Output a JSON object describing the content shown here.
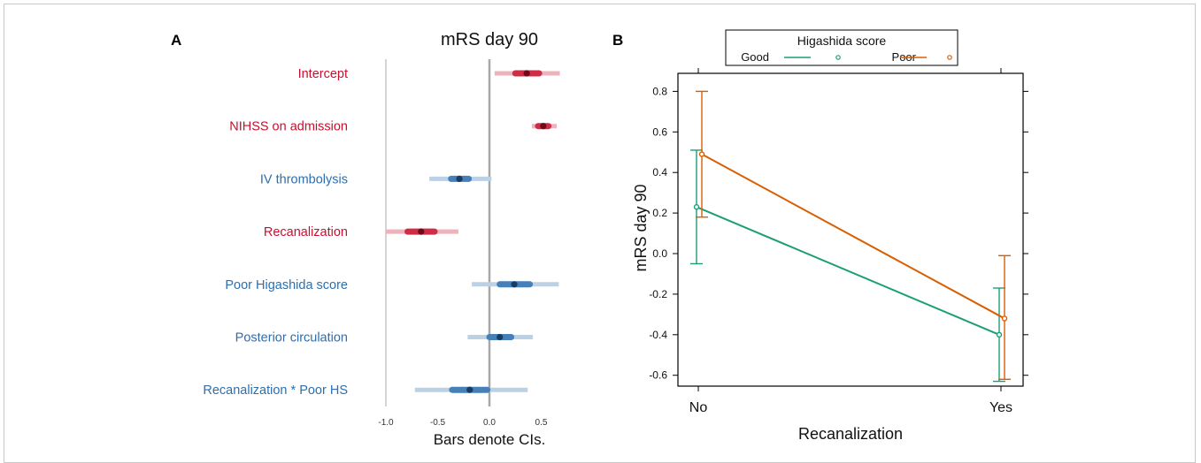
{
  "chart_data": [
    {
      "panel": "A",
      "type": "forest",
      "title": "mRS day 90",
      "xlabel": "Bars denote CIs.",
      "xlim": [
        -1.0,
        0.75
      ],
      "xticks": [
        "-1.0",
        "-0.5",
        "0.0",
        "0.5"
      ],
      "rows": [
        {
          "label": "Intercept",
          "color": "#c8102e",
          "estimate": 0.36,
          "inner": [
            0.25,
            0.48
          ],
          "outer": [
            0.05,
            0.68
          ]
        },
        {
          "label": "NIHSS on admission",
          "color": "#c8102e",
          "estimate": 0.52,
          "inner": [
            0.47,
            0.57
          ],
          "outer": [
            0.41,
            0.65
          ]
        },
        {
          "label": "IV thrombolysis",
          "color": "#2c6fb0",
          "estimate": -0.29,
          "inner": [
            -0.37,
            -0.2
          ],
          "outer": [
            -0.58,
            0.02
          ]
        },
        {
          "label": "Recanalization",
          "color": "#c8102e",
          "estimate": -0.66,
          "inner": [
            -0.79,
            -0.53
          ],
          "outer": [
            -1.0,
            -0.3
          ]
        },
        {
          "label": "Poor Higashida score",
          "color": "#2c6fb0",
          "estimate": 0.24,
          "inner": [
            0.1,
            0.39
          ],
          "outer": [
            -0.17,
            0.67
          ]
        },
        {
          "label": "Posterior circulation",
          "color": "#2c6fb0",
          "estimate": 0.1,
          "inner": [
            0.0,
            0.21
          ],
          "outer": [
            -0.21,
            0.42
          ]
        },
        {
          "label": "Recanalization * Poor HS",
          "color": "#2c6fb0",
          "estimate": -0.19,
          "inner": [
            -0.36,
            -0.02
          ],
          "outer": [
            -0.72,
            0.37
          ]
        }
      ]
    },
    {
      "panel": "B",
      "type": "line",
      "xlabel": "Recanalization",
      "ylabel": "mRS day 90",
      "categories": [
        "No",
        "Yes"
      ],
      "ylim": [
        -0.66,
        0.86
      ],
      "yticks": [
        "-0.6",
        "-0.4",
        "-0.2",
        "0.0",
        "0.2",
        "0.4",
        "0.6",
        "0.8"
      ],
      "legend": {
        "title": "Higashida score",
        "placement": "top"
      },
      "series": [
        {
          "name": "Good",
          "color": "#1b9e77",
          "values": [
            0.23,
            -0.4
          ],
          "lower": [
            -0.05,
            -0.63
          ],
          "upper": [
            0.51,
            -0.17
          ]
        },
        {
          "name": "Poor",
          "color": "#d95f02",
          "values": [
            0.49,
            -0.32
          ],
          "lower": [
            0.18,
            -0.62
          ],
          "upper": [
            0.8,
            -0.01
          ]
        }
      ]
    }
  ],
  "panels": {
    "a_letter": "A",
    "b_letter": "B"
  }
}
